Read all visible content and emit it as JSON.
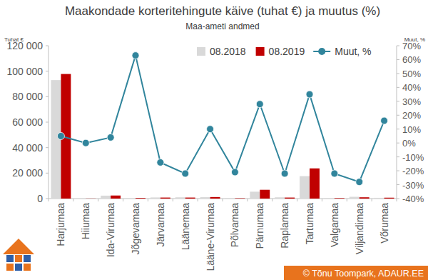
{
  "chart_data": {
    "type": "bar",
    "title": "Maakondade korteritehingute käive (tuhat €) ja muutus (%)",
    "subtitle": "Maa-ameti andmed",
    "y_label": "Tuhat €",
    "y2_label": "Muut, %",
    "source": "© Tõnu Toompark, ADAUR.EE",
    "categories": [
      "Harjumaa",
      "Hiiumaa",
      "Ida-Virumaa",
      "Jõgevamaa",
      "Järvamaa",
      "Läänemaa",
      "Lääne-Virumaa",
      "Põlvamaa",
      "Pärnumaa",
      "Raplamaa",
      "Tartumaa",
      "Valgamaa",
      "Viljandimaa",
      "Võrumaa"
    ],
    "series": [
      {
        "name": "08.2018",
        "type": "bar",
        "color": "#d9d9d9",
        "values": [
          93000,
          100,
          2300,
          300,
          900,
          1000,
          1100,
          400,
          5400,
          1000,
          17600,
          500,
          1400,
          600
        ]
      },
      {
        "name": "08.2019",
        "type": "bar",
        "color": "#c00000",
        "values": [
          97800,
          100,
          2400,
          500,
          800,
          800,
          1200,
          300,
          6900,
          800,
          23700,
          400,
          1000,
          700
        ]
      },
      {
        "name": "Muut, %",
        "type": "line",
        "axis": "y2",
        "color": "#31859c",
        "marker": "circle",
        "values": [
          5,
          0,
          4,
          63,
          -14,
          -22,
          10,
          -21,
          28,
          -22,
          35,
          -22,
          -28,
          16
        ]
      }
    ],
    "ylim": [
      0,
      120000
    ],
    "yticks": [
      0,
      {
        "value": 20000,
        "label": "20 000"
      },
      {
        "value": 40000,
        "label": "40 000"
      },
      {
        "value": 60000,
        "label": "60 000"
      },
      {
        "value": 80000,
        "label": "80 000"
      },
      {
        "value": 100000,
        "label": "100 000"
      },
      {
        "value": 120000,
        "label": "120 000"
      }
    ],
    "y2lim": [
      -40,
      70
    ],
    "y2ticks": [
      {
        "value": -40,
        "label": "-40%"
      },
      {
        "value": -30,
        "label": "-30%"
      },
      {
        "value": -20,
        "label": "-20%"
      },
      {
        "value": -10,
        "label": "-10%"
      },
      {
        "value": 0,
        "label": "0%"
      },
      {
        "value": 10,
        "label": "10%"
      },
      {
        "value": 20,
        "label": "20%"
      },
      {
        "value": 30,
        "label": "30%"
      },
      {
        "value": 40,
        "label": "40%"
      },
      {
        "value": 50,
        "label": "50%"
      },
      {
        "value": 60,
        "label": "60%"
      },
      {
        "value": 70,
        "label": "70%"
      }
    ],
    "grid": false,
    "legend": "top-right"
  }
}
